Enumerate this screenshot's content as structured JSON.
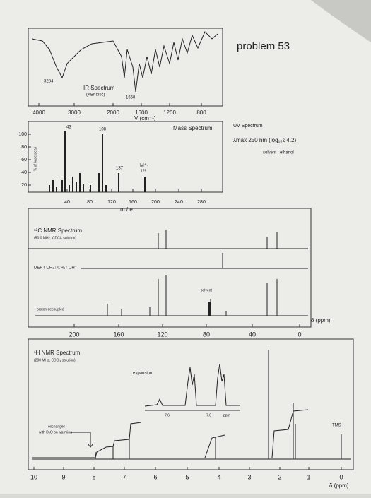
{
  "page": {
    "problem": "problem 53"
  },
  "ir": {
    "title": "IR Spectrum",
    "note": "(KBr disc)",
    "peaks": [
      "3284",
      "1658"
    ],
    "axis": [
      "4000",
      "3000",
      "2000",
      "1600",
      "1200",
      "800"
    ],
    "axis_label": "V (cm⁻¹)"
  },
  "mass": {
    "title": "Mass Spectrum",
    "y_label": "% of base peak",
    "yticks": [
      "100",
      "80",
      "60",
      "40",
      "20"
    ],
    "peaks": [
      "43",
      "108",
      "137",
      "M⁺·",
      "179"
    ],
    "axis": [
      "40",
      "80",
      "120",
      "160",
      "200",
      "240",
      "280"
    ],
    "axis_label": "m / e"
  },
  "uv": {
    "title": "UV Spectrum",
    "lambda": "λmax 250 nm (log₁₀ε 4.2)",
    "solvent": "solvent : ethanol"
  },
  "c13": {
    "title": "¹³C NMR Spectrum",
    "conditions": "(50.0 MHz, CDCl₃ solution)",
    "dept": "DEPT  CH₂↓  CH₃↑  CH↑",
    "solvent": "solvent",
    "decoupled": "proton decoupled",
    "axis": [
      "200",
      "160",
      "120",
      "80",
      "40",
      "0"
    ],
    "axis_label": "δ (ppm)"
  },
  "h1": {
    "title": "¹H NMR Spectrum",
    "conditions": "(200 MHz, CDCl₃ solution)",
    "expansion": "expansion",
    "expansion_axis": [
      "7.6",
      "7.0",
      "ppm"
    ],
    "exchange": [
      "exchanges",
      "with D₂O on warming"
    ],
    "tms": "TMS",
    "axis": [
      "10",
      "9",
      "8",
      "7",
      "6",
      "5",
      "4",
      "3",
      "2",
      "1",
      "0"
    ],
    "axis_label": "δ (ppm)"
  }
}
